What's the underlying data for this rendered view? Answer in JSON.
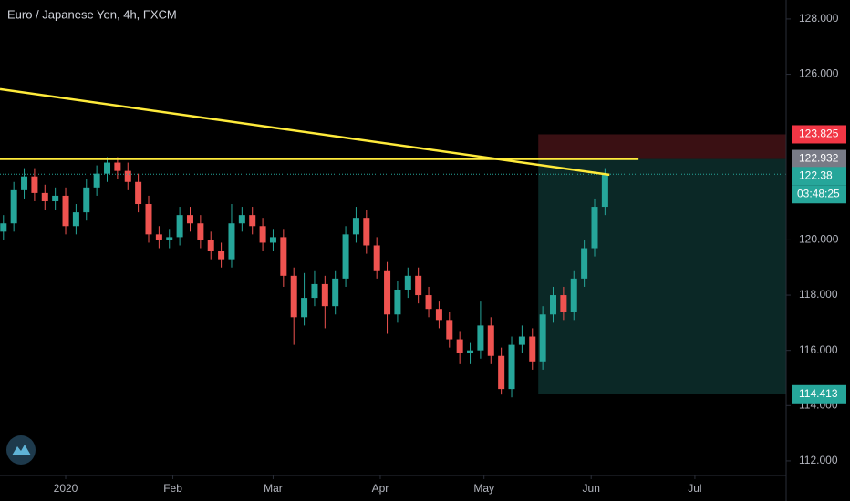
{
  "chart_data": {
    "type": "candlestick",
    "title": "Euro / Japanese Yen, 4h, FXCM",
    "x": [
      -18,
      -15,
      -12,
      -9,
      -6,
      -3,
      0,
      3,
      6,
      9,
      12,
      15,
      18,
      21,
      24,
      27,
      30,
      33,
      36,
      39,
      42,
      45,
      48,
      51,
      54,
      57,
      60,
      63,
      66,
      69,
      72,
      75,
      78,
      81,
      84,
      87,
      90,
      93,
      96,
      99,
      102,
      105,
      108,
      111,
      114,
      117,
      120,
      123,
      126,
      129,
      132,
      135,
      138,
      141,
      144,
      147,
      150,
      153,
      156
    ],
    "open": [
      120.3,
      120.6,
      121.8,
      122.3,
      121.7,
      121.4,
      121.6,
      120.5,
      121.0,
      121.9,
      122.4,
      122.8,
      122.5,
      122.1,
      121.3,
      120.2,
      120.0,
      120.1,
      120.9,
      120.6,
      120.0,
      119.6,
      119.3,
      120.6,
      120.9,
      120.5,
      119.9,
      120.1,
      118.7,
      117.2,
      117.9,
      118.4,
      117.6,
      118.6,
      120.2,
      120.8,
      119.8,
      118.9,
      117.3,
      118.2,
      118.7,
      118.0,
      117.5,
      117.1,
      116.4,
      115.9,
      116.0,
      116.9,
      115.8,
      114.6,
      116.2,
      116.5,
      115.6,
      117.3,
      118.0,
      117.4,
      118.6,
      119.7,
      121.2
    ],
    "high": [
      120.9,
      122.1,
      122.6,
      122.6,
      122.0,
      121.9,
      121.9,
      121.3,
      122.2,
      122.7,
      123.0,
      123.0,
      122.8,
      122.4,
      121.6,
      120.5,
      120.4,
      121.2,
      121.2,
      120.9,
      120.3,
      119.9,
      121.3,
      121.2,
      121.2,
      120.8,
      120.4,
      120.4,
      119.0,
      118.8,
      118.9,
      118.7,
      118.9,
      120.5,
      121.2,
      121.1,
      120.1,
      119.2,
      118.5,
      119.0,
      119.0,
      118.3,
      117.8,
      117.4,
      116.7,
      116.3,
      117.8,
      117.2,
      116.1,
      116.5,
      116.9,
      116.8,
      117.6,
      118.3,
      118.3,
      118.9,
      120.0,
      121.5,
      122.6
    ],
    "low": [
      120.0,
      120.3,
      121.5,
      121.4,
      121.1,
      121.1,
      120.2,
      120.2,
      120.7,
      121.6,
      122.1,
      122.2,
      121.8,
      121.0,
      119.9,
      119.7,
      119.7,
      119.8,
      120.3,
      119.7,
      119.3,
      119.0,
      119.0,
      120.3,
      120.2,
      119.6,
      119.6,
      118.3,
      116.2,
      116.9,
      117.6,
      116.8,
      117.3,
      118.3,
      119.9,
      119.5,
      118.6,
      116.6,
      117.0,
      117.9,
      117.7,
      117.2,
      116.8,
      116.1,
      115.5,
      115.5,
      115.7,
      115.5,
      114.4,
      114.3,
      115.9,
      115.3,
      115.3,
      117.0,
      117.1,
      117.1,
      118.3,
      119.4,
      120.9
    ],
    "close": [
      120.6,
      121.8,
      122.3,
      121.7,
      121.4,
      121.6,
      120.5,
      121.0,
      121.9,
      122.4,
      122.8,
      122.5,
      122.1,
      121.3,
      120.2,
      120.0,
      120.1,
      120.9,
      120.6,
      120.0,
      119.6,
      119.3,
      120.6,
      120.9,
      120.5,
      119.9,
      120.1,
      118.7,
      117.2,
      117.9,
      118.4,
      117.6,
      118.6,
      120.2,
      120.8,
      119.8,
      118.9,
      117.3,
      118.2,
      118.7,
      118.0,
      117.5,
      117.1,
      116.4,
      115.9,
      116.0,
      116.9,
      115.8,
      114.6,
      116.2,
      116.5,
      115.6,
      117.3,
      118.0,
      117.4,
      118.6,
      119.7,
      121.2,
      122.38
    ],
    "up_color": "#26a69a",
    "down_color": "#ef5350",
    "xlim": [
      -19,
      208.4
    ],
    "ylim": [
      111.47,
      128.69
    ],
    "xticks": [
      {
        "value": 0,
        "label": "2020"
      },
      {
        "value": 31,
        "label": "Feb"
      },
      {
        "value": 60,
        "label": "Mar"
      },
      {
        "value": 91,
        "label": "Apr"
      },
      {
        "value": 121,
        "label": "May"
      },
      {
        "value": 152,
        "label": "Jun"
      },
      {
        "value": 182,
        "label": "Jul"
      }
    ],
    "yticks": [
      {
        "value": 112,
        "label": "112.000"
      },
      {
        "value": 114,
        "label": "114.000"
      },
      {
        "value": 116,
        "label": "116.000"
      },
      {
        "value": 118,
        "label": "118.000"
      },
      {
        "value": 120,
        "label": "120.000"
      },
      {
        "value": 126,
        "label": "126.000"
      },
      {
        "value": 128,
        "label": "128.000"
      }
    ],
    "trend_lines": [
      {
        "x": [
          -19,
          157.3
        ],
        "y": [
          125.46,
          122.36
        ],
        "color": "#ffeb3b"
      },
      {
        "x": [
          -19,
          165.7
        ],
        "y": [
          122.932,
          122.932
        ],
        "color": "#ffeb3b"
      }
    ],
    "position": {
      "x": [
        136.7,
        208.4
      ],
      "entry": 122.932,
      "stop": 123.825,
      "target": 114.413,
      "stop_color": "#f23645",
      "entry_color": "#787b86",
      "target_color": "#26a69a",
      "stop_zone_color": "#3a1013",
      "target_zone_color": "#0b2826"
    },
    "countdown": "03:48:25"
  }
}
